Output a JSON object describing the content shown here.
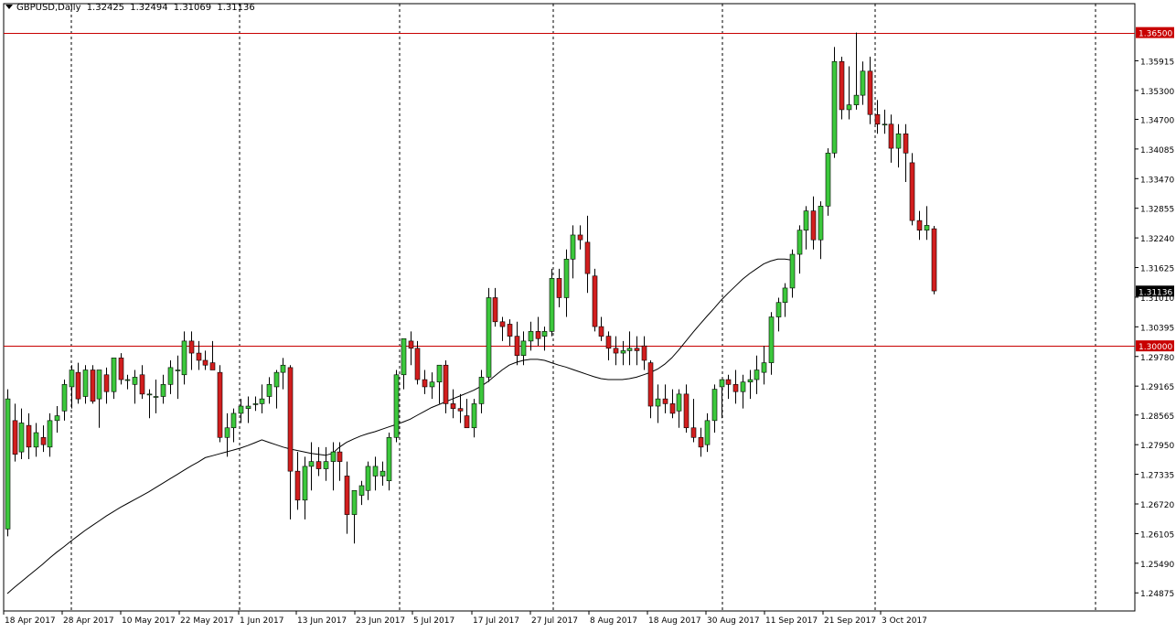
{
  "header": {
    "symbol": "GBPUSD,Daily",
    "open": "1.32425",
    "high": "1.32494",
    "low": "1.31069",
    "close": "1.31136"
  },
  "colors": {
    "bull": "#3cc83c",
    "bear": "#d21e1e",
    "wick": "#000000",
    "grid": "#000000",
    "hline": "#c80000",
    "price_tag": "#000000",
    "hline_tag": "#c80000",
    "ma": "#000000"
  },
  "chart_data": {
    "type": "candlestick",
    "title": "GBPUSD,Daily",
    "y_range": [
      1.245,
      1.371
    ],
    "y_ticks": [
      "1.36500",
      "1.35915",
      "1.35300",
      "1.34700",
      "1.34085",
      "1.33470",
      "1.32855",
      "1.32240",
      "1.31625",
      "1.31010",
      "1.30395",
      "1.30000",
      "1.29780",
      "1.29165",
      "1.28565",
      "1.27950",
      "1.27335",
      "1.26720",
      "1.26105",
      "1.25490",
      "1.24875"
    ],
    "x_labels": [
      "18 Apr 2017",
      "28 Apr 2017",
      "10 May 2017",
      "22 May 2017",
      "1 Jun 2017",
      "13 Jun 2017",
      "23 Jun 2017",
      "5 Jul 2017",
      "17 Jul 2017",
      "27 Jul 2017",
      "8 Aug 2017",
      "18 Aug 2017",
      "30 Aug 2017",
      "11 Sep 2017",
      "21 Sep 2017",
      "3 Oct 2017"
    ],
    "horizontal_lines": [
      {
        "price": 1.365,
        "label": "1.36500"
      },
      {
        "price": 1.3,
        "label": "1.30000"
      }
    ],
    "current_price": {
      "price": 1.31136,
      "label": "1.31136"
    },
    "grid": "vertical dashed",
    "moving_average": [
      1.2486,
      1.2499,
      1.2511,
      1.2523,
      1.2535,
      1.2547,
      1.256,
      1.2572,
      1.2583,
      1.2595,
      1.2606,
      1.2617,
      1.2627,
      1.2637,
      1.2647,
      1.2656,
      1.2665,
      1.2673,
      1.2681,
      1.2689,
      1.2697,
      1.2706,
      1.2715,
      1.2724,
      1.2733,
      1.2742,
      1.2751,
      1.2759,
      1.2768,
      1.2772,
      1.2776,
      1.278,
      1.2784,
      1.2788,
      1.2793,
      1.2799,
      1.2805,
      1.28,
      1.2795,
      1.279,
      1.2786,
      1.2783,
      1.278,
      1.2777,
      1.2775,
      1.2773,
      1.2777,
      1.279,
      1.28,
      1.2807,
      1.2813,
      1.2818,
      1.2822,
      1.2827,
      1.2832,
      1.2837,
      1.2842,
      1.2848,
      1.2856,
      1.2864,
      1.2872,
      1.2878,
      1.2884,
      1.289,
      1.2896,
      1.2902,
      1.2908,
      1.2916,
      1.2926,
      1.2938,
      1.295,
      1.296,
      1.2966,
      1.297,
      1.2972,
      1.2972,
      1.297,
      1.2965,
      1.296,
      1.2956,
      1.2951,
      1.2946,
      1.2941,
      1.2936,
      1.2932,
      1.293,
      1.293,
      1.293,
      1.2932,
      1.2935,
      1.294,
      1.2945,
      1.2952,
      1.2962,
      1.2975,
      1.2992,
      1.301,
      1.3028,
      1.3045,
      1.3062,
      1.3078,
      1.3095,
      1.311,
      1.3124,
      1.3138,
      1.315,
      1.316,
      1.317,
      1.3176,
      1.318,
      1.318,
      1.3178
    ],
    "candles": [
      [
        1.262,
        1.291,
        1.2605,
        1.289
      ],
      [
        1.2845,
        1.288,
        1.276,
        1.2775
      ],
      [
        1.278,
        1.287,
        1.2765,
        1.284
      ],
      [
        1.2835,
        1.286,
        1.2765,
        1.279
      ],
      [
        1.279,
        1.284,
        1.277,
        1.282
      ],
      [
        1.281,
        1.2835,
        1.278,
        1.2795
      ],
      [
        1.279,
        1.286,
        1.277,
        1.2845
      ],
      [
        1.2845,
        1.2875,
        1.282,
        1.2855
      ],
      [
        1.2865,
        1.293,
        1.2845,
        1.292
      ],
      [
        1.2915,
        1.296,
        1.287,
        1.295
      ],
      [
        1.2945,
        1.2965,
        1.288,
        1.289
      ],
      [
        1.2895,
        1.296,
        1.288,
        1.295
      ],
      [
        1.295,
        1.296,
        1.288,
        1.2885
      ],
      [
        1.289,
        1.295,
        1.283,
        1.295
      ],
      [
        1.294,
        1.2955,
        1.288,
        1.2905
      ],
      [
        1.2905,
        1.2975,
        1.289,
        1.2975
      ],
      [
        1.2975,
        1.2985,
        1.292,
        1.293
      ],
      [
        1.293,
        1.294,
        1.291,
        1.293
      ],
      [
        1.292,
        1.295,
        1.288,
        1.2935
      ],
      [
        1.294,
        1.296,
        1.289,
        1.29
      ],
      [
        1.29,
        1.291,
        1.285,
        1.29
      ],
      [
        1.2895,
        1.293,
        1.286,
        1.2895
      ],
      [
        1.2895,
        1.294,
        1.288,
        1.292
      ],
      [
        1.292,
        1.297,
        1.29,
        1.2955
      ],
      [
        1.295,
        1.298,
        1.289,
        1.295
      ],
      [
        1.294,
        1.303,
        1.292,
        1.301
      ],
      [
        1.301,
        1.303,
        1.295,
        1.2985
      ],
      [
        1.2985,
        1.301,
        1.295,
        1.297
      ],
      [
        1.297,
        1.299,
        1.295,
        1.296
      ],
      [
        1.2965,
        1.301,
        1.295,
        1.295
      ],
      [
        1.2945,
        1.296,
        1.28,
        1.281
      ],
      [
        1.281,
        1.286,
        1.277,
        1.283
      ],
      [
        1.283,
        1.287,
        1.28,
        1.286
      ],
      [
        1.286,
        1.289,
        1.284,
        1.2875
      ],
      [
        1.287,
        1.2895,
        1.284,
        1.2875
      ],
      [
        1.288,
        1.2895,
        1.2865,
        1.288
      ],
      [
        1.288,
        1.292,
        1.286,
        1.289
      ],
      [
        1.2895,
        1.2935,
        1.288,
        1.292
      ],
      [
        1.2915,
        1.295,
        1.287,
        1.2945
      ],
      [
        1.2945,
        1.2975,
        1.291,
        1.296
      ],
      [
        1.2955,
        1.296,
        1.264,
        1.274
      ],
      [
        1.274,
        1.278,
        1.266,
        1.268
      ],
      [
        1.268,
        1.277,
        1.264,
        1.275
      ],
      [
        1.275,
        1.28,
        1.27,
        1.276
      ],
      [
        1.276,
        1.279,
        1.273,
        1.2745
      ],
      [
        1.2745,
        1.279,
        1.272,
        1.276
      ],
      [
        1.276,
        1.28,
        1.27,
        1.278
      ],
      [
        1.278,
        1.28,
        1.272,
        1.276
      ],
      [
        1.273,
        1.276,
        1.261,
        1.265
      ],
      [
        1.265,
        1.27,
        1.259,
        1.27
      ],
      [
        1.269,
        1.272,
        1.267,
        1.271
      ],
      [
        1.27,
        1.276,
        1.268,
        1.275
      ],
      [
        1.273,
        1.277,
        1.27,
        1.275
      ],
      [
        1.273,
        1.276,
        1.271,
        1.274
      ],
      [
        1.272,
        1.282,
        1.27,
        1.281
      ],
      [
        1.281,
        1.295,
        1.28,
        1.294
      ],
      [
        1.294,
        1.301,
        1.291,
        1.3015
      ],
      [
        1.301,
        1.303,
        1.296,
        1.2995
      ],
      [
        1.2995,
        1.301,
        1.292,
        1.293
      ],
      [
        1.293,
        1.295,
        1.29,
        1.2915
      ],
      [
        1.2915,
        1.2945,
        1.289,
        1.2925
      ],
      [
        1.2925,
        1.296,
        1.288,
        1.296
      ],
      [
        1.296,
        1.297,
        1.286,
        1.288
      ],
      [
        1.288,
        1.291,
        1.285,
        1.287
      ],
      [
        1.287,
        1.29,
        1.284,
        1.2865
      ],
      [
        1.2855,
        1.289,
        1.283,
        1.283
      ],
      [
        1.283,
        1.289,
        1.281,
        1.288
      ],
      [
        1.288,
        1.295,
        1.286,
        1.2935
      ],
      [
        1.2935,
        1.312,
        1.2925,
        1.31
      ],
      [
        1.31,
        1.312,
        1.304,
        1.305
      ],
      [
        1.305,
        1.306,
        1.301,
        1.304
      ],
      [
        1.3045,
        1.3055,
        1.3,
        1.302
      ],
      [
        1.302,
        1.305,
        1.296,
        1.298
      ],
      [
        1.298,
        1.303,
        1.296,
        1.301
      ],
      [
        1.301,
        1.305,
        1.299,
        1.303
      ],
      [
        1.303,
        1.306,
        1.3,
        1.3015
      ],
      [
        1.302,
        1.304,
        1.299,
        1.303
      ],
      [
        1.303,
        1.316,
        1.302,
        1.314
      ],
      [
        1.314,
        1.316,
        1.308,
        1.31
      ],
      [
        1.31,
        1.32,
        1.306,
        1.318
      ],
      [
        1.318,
        1.325,
        1.314,
        1.323
      ],
      [
        1.323,
        1.325,
        1.32,
        1.322
      ],
      [
        1.3215,
        1.327,
        1.311,
        1.315
      ],
      [
        1.3145,
        1.316,
        1.303,
        1.304
      ],
      [
        1.304,
        1.306,
        1.301,
        1.302
      ],
      [
        1.302,
        1.303,
        1.297,
        1.2995
      ],
      [
        1.2995,
        1.302,
        1.296,
        1.2985
      ],
      [
        1.2985,
        1.301,
        1.296,
        1.299
      ],
      [
        1.299,
        1.303,
        1.296,
        1.2995
      ],
      [
        1.2995,
        1.302,
        1.296,
        1.299
      ],
      [
        1.3,
        1.302,
        1.295,
        1.297
      ],
      [
        1.2965,
        1.297,
        1.285,
        1.2875
      ],
      [
        1.2875,
        1.292,
        1.284,
        1.289
      ],
      [
        1.289,
        1.292,
        1.286,
        1.288
      ],
      [
        1.288,
        1.291,
        1.285,
        1.286
      ],
      [
        1.2865,
        1.291,
        1.283,
        1.29
      ],
      [
        1.29,
        1.292,
        1.282,
        1.283
      ],
      [
        1.283,
        1.289,
        1.28,
        1.281
      ],
      [
        1.281,
        1.283,
        1.277,
        1.279
      ],
      [
        1.2795,
        1.286,
        1.278,
        1.2845
      ],
      [
        1.2845,
        1.292,
        1.282,
        1.291
      ],
      [
        1.2915,
        1.293,
        1.285,
        1.293
      ],
      [
        1.293,
        1.294,
        1.289,
        1.292
      ],
      [
        1.292,
        1.295,
        1.288,
        1.2905
      ],
      [
        1.2905,
        1.294,
        1.287,
        1.2925
      ],
      [
        1.2925,
        1.295,
        1.289,
        1.293
      ],
      [
        1.293,
        1.298,
        1.29,
        1.295
      ],
      [
        1.2945,
        1.3,
        1.292,
        1.2965
      ],
      [
        1.2965,
        1.307,
        1.294,
        1.306
      ],
      [
        1.306,
        1.31,
        1.303,
        1.309
      ],
      [
        1.309,
        1.313,
        1.306,
        1.312
      ],
      [
        1.312,
        1.32,
        1.31,
        1.319
      ],
      [
        1.319,
        1.325,
        1.315,
        1.324
      ],
      [
        1.324,
        1.329,
        1.32,
        1.328
      ],
      [
        1.328,
        1.331,
        1.32,
        1.322
      ],
      [
        1.322,
        1.33,
        1.318,
        1.329
      ],
      [
        1.329,
        1.341,
        1.327,
        1.34
      ],
      [
        1.34,
        1.362,
        1.339,
        1.359
      ],
      [
        1.359,
        1.36,
        1.347,
        1.349
      ],
      [
        1.349,
        1.358,
        1.347,
        1.35
      ],
      [
        1.35,
        1.365,
        1.349,
        1.352
      ],
      [
        1.352,
        1.359,
        1.35,
        1.357
      ],
      [
        1.357,
        1.36,
        1.346,
        1.348
      ],
      [
        1.348,
        1.351,
        1.344,
        1.346
      ],
      [
        1.346,
        1.349,
        1.344,
        1.346
      ],
      [
        1.346,
        1.348,
        1.338,
        1.341
      ],
      [
        1.341,
        1.346,
        1.337,
        1.344
      ],
      [
        1.344,
        1.346,
        1.334,
        1.34
      ],
      [
        1.338,
        1.34,
        1.325,
        1.326
      ],
      [
        1.326,
        1.328,
        1.322,
        1.324
      ],
      [
        1.324,
        1.329,
        1.322,
        1.325
      ],
      [
        1.3243,
        1.3249,
        1.3107,
        1.3114
      ]
    ]
  }
}
